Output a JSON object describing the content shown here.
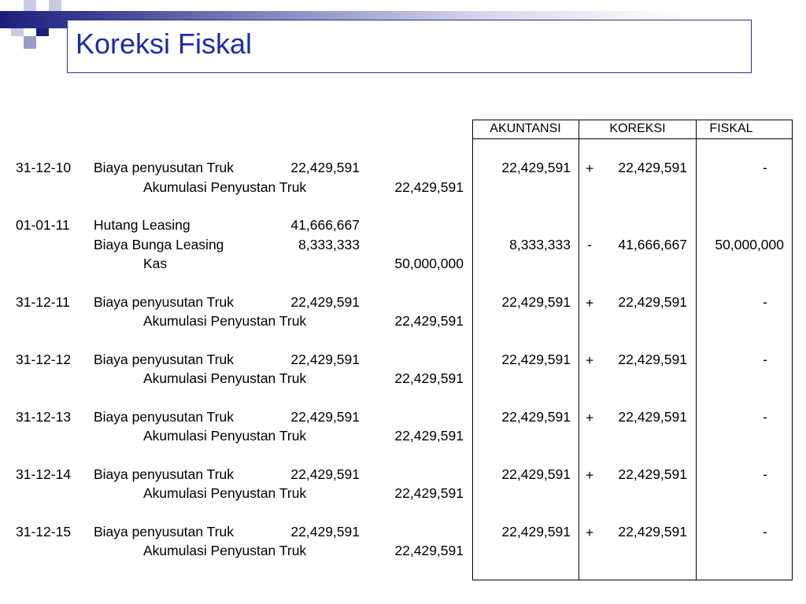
{
  "title": "Koreksi Fiskal",
  "table_headers": {
    "akuntansi": "AKUNTANSI",
    "koreksi": "KOREKSI",
    "fiskal": "FISKAL"
  },
  "entries": [
    {
      "date": "31-12-10",
      "debit_account": "Biaya penyusutan Truk",
      "debit_amount": "22,429,591",
      "credit_account": "Akumulasi Penyustan Truk",
      "credit_amount": "22,429,591",
      "akuntansi": "22,429,591",
      "sign": "+",
      "koreksi": "22,429,591",
      "fiskal": "-"
    },
    {
      "date": "31-12-11",
      "debit_account": "Biaya penyusutan Truk",
      "debit_amount": "22,429,591",
      "credit_account": "Akumulasi Penyustan Truk",
      "credit_amount": "22,429,591",
      "akuntansi": "22,429,591",
      "sign": "+",
      "koreksi": "22,429,591",
      "fiskal": "-"
    },
    {
      "date": "31-12-12",
      "debit_account": "Biaya penyusutan Truk",
      "debit_amount": "22,429,591",
      "credit_account": "Akumulasi Penyustan Truk",
      "credit_amount": "22,429,591",
      "akuntansi": "22,429,591",
      "sign": "+",
      "koreksi": "22,429,591",
      "fiskal": "-"
    },
    {
      "date": "31-12-13",
      "debit_account": "Biaya penyusutan Truk",
      "debit_amount": "22,429,591",
      "credit_account": "Akumulasi Penyustan Truk",
      "credit_amount": "22,429,591",
      "akuntansi": "22,429,591",
      "sign": "+",
      "koreksi": "22,429,591",
      "fiskal": "-"
    },
    {
      "date": "31-12-14",
      "debit_account": "Biaya penyusutan Truk",
      "debit_amount": "22,429,591",
      "credit_account": "Akumulasi Penyustan Truk",
      "credit_amount": "22,429,591",
      "akuntansi": "22,429,591",
      "sign": "+",
      "koreksi": "22,429,591",
      "fiskal": "-"
    },
    {
      "date": "31-12-15",
      "debit_account": "Biaya penyusutan Truk",
      "debit_amount": "22,429,591",
      "credit_account": "Akumulasi Penyustan Truk",
      "credit_amount": "22,429,591",
      "akuntansi": "22,429,591",
      "sign": "+",
      "koreksi": "22,429,591",
      "fiskal": "-"
    }
  ],
  "leasing_entry": {
    "date": "01-01-11",
    "line1_account": "Hutang Leasing",
    "line1_amount": "41,666,667",
    "line2_account": "Biaya Bunga Leasing",
    "line2_amount": "8,333,333",
    "credit_account": "Kas",
    "credit_amount": "50,000,000",
    "akuntansi": "8,333,333",
    "sign": "-",
    "koreksi": "41,666,667",
    "fiskal": "50,000,000"
  }
}
